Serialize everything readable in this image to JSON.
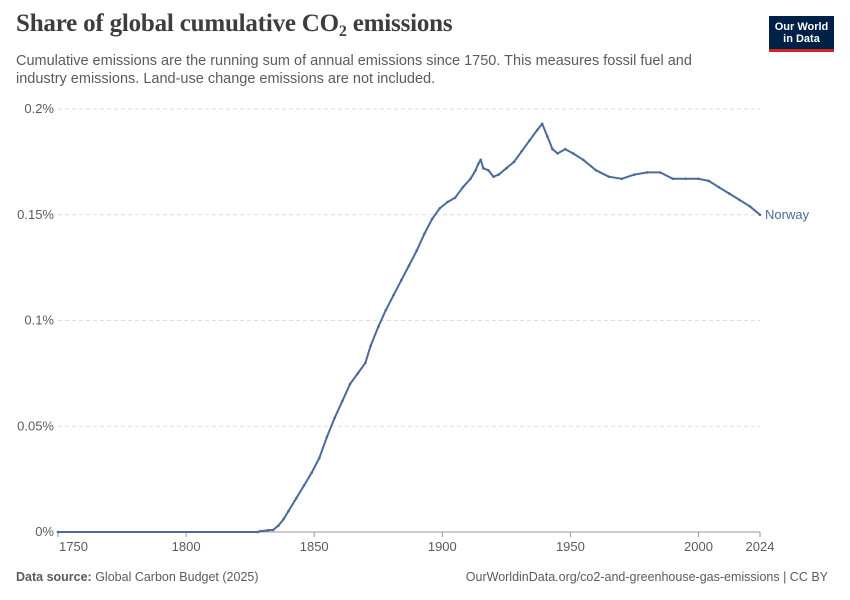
{
  "header": {
    "title_main": "Share of global cumulative CO",
    "title_sub": "2",
    "title_tail": " emissions",
    "subtitle": "Cumulative emissions are the running sum of annual emissions since 1750. This measures fossil fuel and industry emissions. Land-use change emissions are not included."
  },
  "logo": {
    "line1": "Our World",
    "line2": "in Data"
  },
  "footer": {
    "source_label": "Data source:",
    "source_value": " Global Carbon Budget (2025)",
    "right_text": "OurWorldinData.org/co2-and-greenhouse-gas-emissions | CC BY"
  },
  "colors": {
    "series": "#4c6a9c",
    "grid": "#dddddd",
    "axis": "#999999",
    "logo_bg": "#002147",
    "logo_accent": "#ce261e"
  },
  "chart_data": {
    "type": "line",
    "title": "Share of global cumulative CO₂ emissions",
    "xlabel": "",
    "ylabel": "",
    "xlim": [
      1750,
      2024
    ],
    "ylim": [
      0,
      0.2
    ],
    "x_ticks": [
      1750,
      1800,
      1850,
      1900,
      1950,
      2000,
      2024
    ],
    "y_ticks": [
      0,
      0.05,
      0.1,
      0.15,
      0.2
    ],
    "y_tick_labels": [
      "0%",
      "0.05%",
      "0.1%",
      "0.15%",
      "0.2%"
    ],
    "grid": "horizontal dashed",
    "legend": "inline label at line end",
    "series": [
      {
        "name": "Norway",
        "color": "#4c6a9c",
        "points": [
          [
            1750,
            0
          ],
          [
            1828,
            0
          ],
          [
            1829,
            0.0004
          ],
          [
            1832,
            0.0008
          ],
          [
            1834,
            0.001
          ],
          [
            1836,
            0.003
          ],
          [
            1838,
            0.006
          ],
          [
            1840,
            0.01
          ],
          [
            1843,
            0.016
          ],
          [
            1846,
            0.022
          ],
          [
            1849,
            0.028
          ],
          [
            1852,
            0.035
          ],
          [
            1855,
            0.045
          ],
          [
            1858,
            0.054
          ],
          [
            1861,
            0.062
          ],
          [
            1864,
            0.07
          ],
          [
            1867,
            0.075
          ],
          [
            1870,
            0.08
          ],
          [
            1872,
            0.088
          ],
          [
            1875,
            0.097
          ],
          [
            1878,
            0.105
          ],
          [
            1881,
            0.112
          ],
          [
            1884,
            0.119
          ],
          [
            1887,
            0.126
          ],
          [
            1890,
            0.133
          ],
          [
            1893,
            0.141
          ],
          [
            1896,
            0.148
          ],
          [
            1899,
            0.153
          ],
          [
            1902,
            0.156
          ],
          [
            1905,
            0.158
          ],
          [
            1908,
            0.163
          ],
          [
            1911,
            0.167
          ],
          [
            1913,
            0.171
          ],
          [
            1914,
            0.174
          ],
          [
            1915,
            0.176
          ],
          [
            1916,
            0.172
          ],
          [
            1918,
            0.171
          ],
          [
            1920,
            0.168
          ],
          [
            1922,
            0.169
          ],
          [
            1925,
            0.172
          ],
          [
            1928,
            0.175
          ],
          [
            1931,
            0.18
          ],
          [
            1934,
            0.185
          ],
          [
            1937,
            0.19
          ],
          [
            1939,
            0.193
          ],
          [
            1941,
            0.187
          ],
          [
            1943,
            0.181
          ],
          [
            1945,
            0.179
          ],
          [
            1948,
            0.181
          ],
          [
            1951,
            0.179
          ],
          [
            1955,
            0.176
          ],
          [
            1960,
            0.171
          ],
          [
            1965,
            0.168
          ],
          [
            1970,
            0.167
          ],
          [
            1975,
            0.169
          ],
          [
            1980,
            0.17
          ],
          [
            1985,
            0.17
          ],
          [
            1990,
            0.167
          ],
          [
            1995,
            0.167
          ],
          [
            2000,
            0.167
          ],
          [
            2004,
            0.166
          ],
          [
            2008,
            0.163
          ],
          [
            2012,
            0.16
          ],
          [
            2016,
            0.157
          ],
          [
            2020,
            0.154
          ],
          [
            2024,
            0.15
          ]
        ]
      }
    ]
  }
}
